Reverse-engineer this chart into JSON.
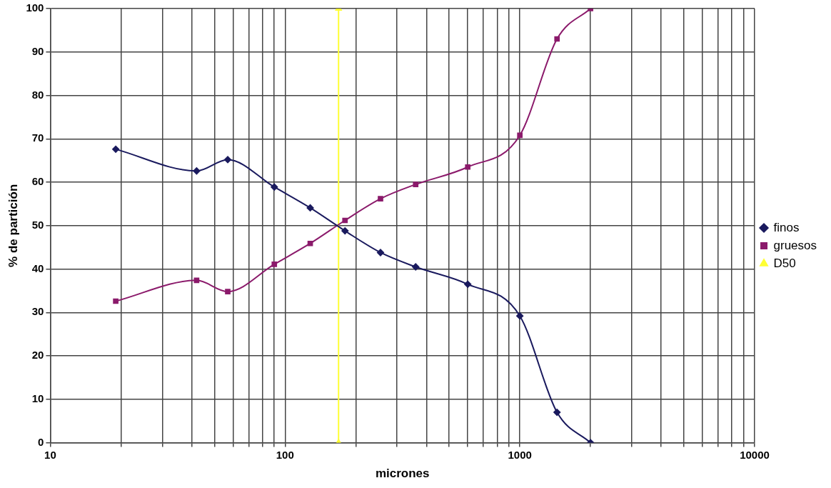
{
  "chart_data": {
    "type": "line",
    "xlabel": "micrones",
    "ylabel": "% de partición",
    "log": "x",
    "grid": true,
    "legend": "right",
    "line_style": "solid",
    "xlim": [
      10,
      10000
    ],
    "xticks": [
      10,
      {
        "value": 20,
        "label": null
      },
      {
        "value": 30,
        "label": null
      },
      {
        "value": 40,
        "label": null
      },
      {
        "value": 50,
        "label": null
      },
      {
        "value": 60,
        "label": null
      },
      {
        "value": 70,
        "label": null
      },
      {
        "value": 80,
        "label": null
      },
      {
        "value": 90,
        "label": null
      },
      100,
      {
        "value": 200,
        "label": null
      },
      {
        "value": 300,
        "label": null
      },
      {
        "value": 400,
        "label": null
      },
      {
        "value": 500,
        "label": null
      },
      {
        "value": 600,
        "label": null
      },
      {
        "value": 700,
        "label": null
      },
      {
        "value": 800,
        "label": null
      },
      {
        "value": 900,
        "label": null
      },
      1000,
      {
        "value": 2000,
        "label": null
      },
      {
        "value": 3000,
        "label": null
      },
      {
        "value": 4000,
        "label": null
      },
      {
        "value": 5000,
        "label": null
      },
      {
        "value": 6000,
        "label": null
      },
      {
        "value": 7000,
        "label": null
      },
      {
        "value": 8000,
        "label": null
      },
      {
        "value": 9000,
        "label": null
      },
      10000
    ],
    "ylim": [
      0,
      100
    ],
    "yticks": [
      0,
      10,
      20,
      30,
      40,
      50,
      60,
      70,
      80,
      90,
      100
    ],
    "series": [
      {
        "name": "finos",
        "color": "#1a1a5e",
        "marker": "diamond",
        "x": [
          19,
          42,
          57,
          90,
          128,
          180,
          255,
          360,
          600,
          1000,
          1440,
          2000
        ],
        "values": [
          67.6,
          62.6,
          65.2,
          58.9,
          54.1,
          48.8,
          43.8,
          40.5,
          36.5,
          29.2,
          7.0,
          0
        ]
      },
      {
        "name": "gruesos",
        "color": "#8b1a6b",
        "marker": "square",
        "x": [
          19,
          42,
          57,
          90,
          128,
          180,
          255,
          360,
          600,
          1000,
          1440,
          2000
        ],
        "values": [
          32.6,
          37.4,
          34.8,
          41.1,
          45.9,
          51.2,
          56.2,
          59.5,
          63.5,
          70.8,
          93.0,
          100
        ]
      },
      {
        "name": "D50",
        "color": "#ffff33",
        "marker": "triangle",
        "x": [
          169,
          169
        ],
        "values": [
          0,
          100
        ]
      }
    ]
  }
}
